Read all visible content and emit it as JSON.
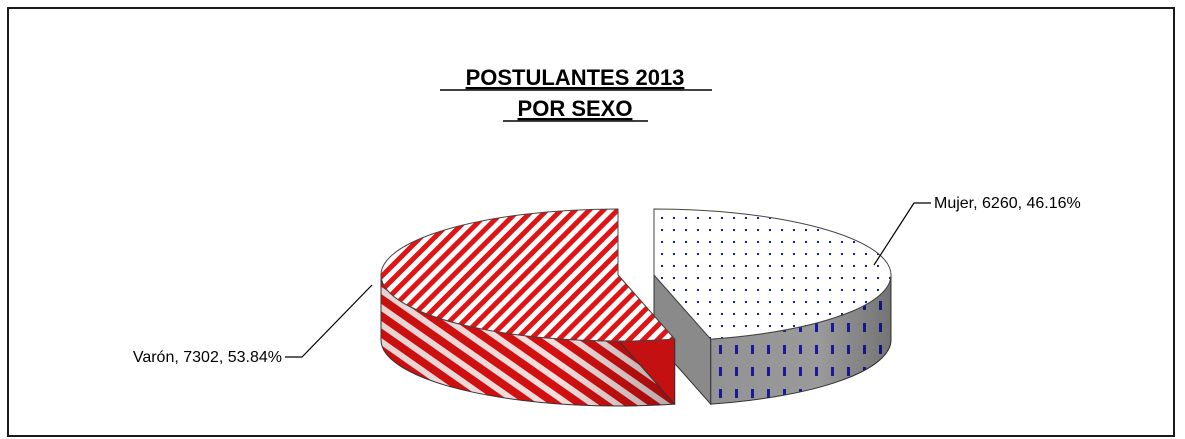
{
  "chart_data": {
    "type": "pie",
    "title": [
      "POSTULANTES 2013",
      "POR SEXO"
    ],
    "categories": [
      "Mujer",
      "Varón"
    ],
    "values": [
      6260,
      7302
    ],
    "percentages": [
      "46.16%",
      "53.84%"
    ],
    "data_labels": [
      "Mujer, 6260, 46.16%",
      "Varón, 7302, 53.84%"
    ],
    "colors": {
      "Mujer": {
        "top": "#ffffff",
        "pattern": "#1a1aa0",
        "side": "#8c8c8c"
      },
      "Varón": {
        "top": "#ffffff",
        "pattern": "#e01414",
        "side": "#d41010"
      }
    },
    "style": "3D exploded pie with pattern fills",
    "legend": "none"
  }
}
